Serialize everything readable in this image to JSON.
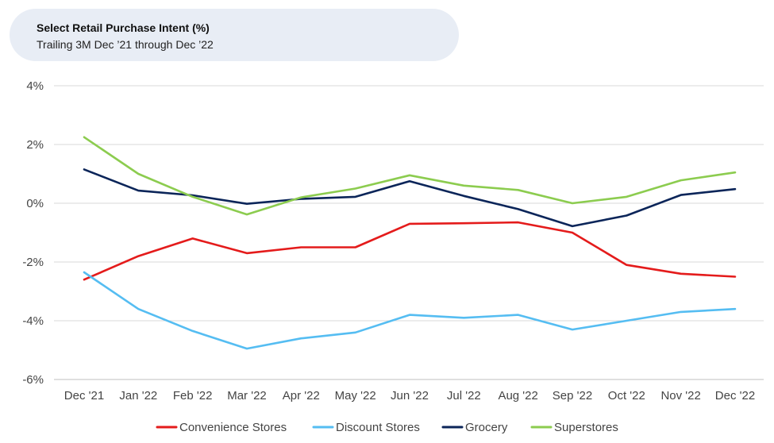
{
  "chart_data": {
    "type": "line",
    "title": "Select Retail Purchase Intent (%)",
    "subtitle": "Trailing 3M Dec ’21 through Dec ’22",
    "xlabel": "",
    "ylabel": "",
    "categories": [
      "Dec '21",
      "Jan '22",
      "Feb '22",
      "Mar '22",
      "Apr '22",
      "May '22",
      "Jun '22",
      "Jul '22",
      "Aug '22",
      "Sep '22",
      "Oct '22",
      "Nov '22",
      "Dec '22"
    ],
    "ylim": [
      -6,
      4
    ],
    "yticks": [
      4,
      2,
      0,
      -2,
      -4,
      -6
    ],
    "ytick_labels": [
      "4%",
      "2%",
      "0%",
      "-2%",
      "-4%",
      "-6%"
    ],
    "grid": true,
    "legend_position": "bottom",
    "series": [
      {
        "name": "Convenience Stores",
        "color": "#e41b1b",
        "values": [
          -2.6,
          -1.8,
          -1.2,
          -1.7,
          -1.5,
          -1.5,
          -0.7,
          -0.68,
          -0.65,
          -1.0,
          -2.1,
          -2.4,
          -2.5
        ]
      },
      {
        "name": "Discount Stores",
        "color": "#55bdf2",
        "values": [
          -2.35,
          -3.6,
          -4.35,
          -4.95,
          -4.6,
          -4.4,
          -3.8,
          -3.9,
          -3.8,
          -4.3,
          -4.0,
          -3.7,
          -3.6
        ]
      },
      {
        "name": "Grocery",
        "color": "#0b2559",
        "values": [
          1.15,
          0.43,
          0.27,
          -0.02,
          0.15,
          0.22,
          0.75,
          0.25,
          -0.2,
          -0.78,
          -0.42,
          0.28,
          0.48
        ]
      },
      {
        "name": "Superstores",
        "color": "#8ccc4f",
        "values": [
          2.25,
          1.0,
          0.22,
          -0.38,
          0.2,
          0.5,
          0.95,
          0.6,
          0.45,
          0.0,
          0.22,
          0.78,
          1.05
        ]
      }
    ]
  }
}
